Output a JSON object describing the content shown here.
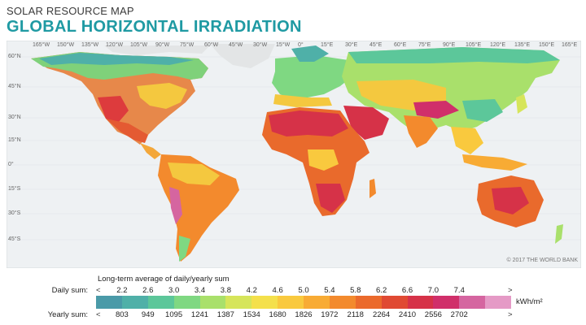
{
  "header": {
    "subtitle": "SOLAR RESOURCE MAP",
    "title": "GLOBAL HORIZONTAL IRRADIATION"
  },
  "map": {
    "longitude_labels": [
      "165°W",
      "150°W",
      "135°W",
      "120°W",
      "105°W",
      "90°W",
      "75°W",
      "60°W",
      "45°W",
      "30°W",
      "15°W",
      "0°",
      "15°E",
      "30°E",
      "45°E",
      "60°E",
      "75°E",
      "90°E",
      "105°E",
      "120°E",
      "135°E",
      "150°E",
      "165°E"
    ],
    "latitude_labels": [
      "60°N",
      "45°N",
      "30°N",
      "15°N",
      "0°",
      "15°S",
      "30°S",
      "45°S"
    ],
    "credit": "© 2017 THE WORLD BANK",
    "ocean_color": "#eef1f3",
    "land_color": "#e3e5e6"
  },
  "legend": {
    "title": "Long-term average of daily/yearly sum",
    "daily_label": "Daily sum:",
    "yearly_label": "Yearly sum:",
    "daily_values": [
      "2.2",
      "2.6",
      "3.0",
      "3.4",
      "3.8",
      "4.2",
      "4.6",
      "5.0",
      "5.4",
      "5.8",
      "6.2",
      "6.6",
      "7.0",
      "7.4"
    ],
    "yearly_values": [
      "803",
      "949",
      "1095",
      "1241",
      "1387",
      "1534",
      "1680",
      "1826",
      "1972",
      "2118",
      "2264",
      "2410",
      "2556",
      "2702"
    ],
    "less_than": "<",
    "greater_than": ">",
    "unit": "kWh/m²",
    "colors": [
      "#4a9aa8",
      "#4fb0a8",
      "#5cc79a",
      "#7fd882",
      "#a9e06b",
      "#d6e55a",
      "#f4e04b",
      "#f9c93e",
      "#f8ab34",
      "#f38a2d",
      "#eb6a2c",
      "#e04a33",
      "#d63248",
      "#d02f6a",
      "#d565a0",
      "#e59ac6"
    ]
  }
}
